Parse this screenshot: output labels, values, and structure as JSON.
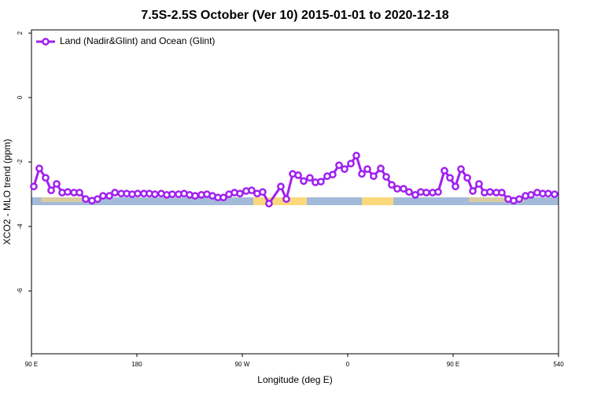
{
  "chart_data": {
    "type": "line",
    "title": "7.5S-2.5S October (Ver 10)   2015-01-01 to 2020-12-18",
    "x_label": "Longitude (deg E)",
    "y_label": "XCO2 - MLO trend (ppm)",
    "x": [
      92.0,
      96.7,
      102.1,
      106.8,
      111.5,
      116.2,
      120.9,
      126.3,
      131.0,
      136.3,
      141.7,
      146.4,
      151.1,
      156.5,
      161.2,
      166.6,
      171.3,
      176.0,
      180.7,
      186.0,
      190.7,
      195.4,
      200.8,
      205.5,
      210.2,
      215.6,
      220.3,
      225.0,
      229.7,
      235.1,
      239.8,
      244.5,
      249.2,
      253.9,
      258.6,
      263.3,
      268.0,
      273.3,
      278.0,
      282.7,
      287.4,
      292.8,
      302.9,
      307.6,
      313.0,
      317.7,
      322.4,
      327.7,
      332.4,
      337.1,
      342.5,
      347.2,
      352.6,
      357.3,
      362.7,
      367.4,
      372.1,
      376.8,
      382.1,
      388.2,
      392.9,
      397.6,
      402.3,
      407.7,
      412.4,
      417.7,
      422.4,
      427.1,
      432.5,
      437.2,
      442.6,
      447.3,
      452.0,
      456.7,
      462.1,
      466.8,
      472.1,
      476.8,
      481.5,
      486.9,
      491.6,
      497.0,
      501.7,
      506.4,
      511.8,
      516.5,
      521.8,
      526.5,
      531.2,
      536.6
    ],
    "series": [
      {
        "name": "Land (Nadir&Glint) and Ocean (Glint)",
        "color": "#a020f0",
        "values": [
          -2.76,
          -2.2,
          -2.49,
          -2.88,
          -2.68,
          -2.95,
          -2.93,
          -2.95,
          -2.95,
          -3.15,
          -3.2,
          -3.15,
          -3.05,
          -3.05,
          -2.95,
          -2.98,
          -2.98,
          -3.0,
          -2.98,
          -2.98,
          -2.98,
          -3.0,
          -2.98,
          -3.02,
          -3.0,
          -3.0,
          -2.98,
          -3.02,
          -3.05,
          -3.02,
          -3.0,
          -3.05,
          -3.1,
          -3.1,
          -3.0,
          -2.95,
          -2.98,
          -2.9,
          -2.88,
          -2.98,
          -2.93,
          -3.29,
          -2.76,
          -3.15,
          -2.37,
          -2.41,
          -2.59,
          -2.49,
          -2.63,
          -2.61,
          -2.44,
          -2.39,
          -2.1,
          -2.22,
          -2.05,
          -1.8,
          -2.37,
          -2.22,
          -2.44,
          -2.2,
          -2.46,
          -2.71,
          -2.83,
          -2.83,
          -2.93,
          -3.02,
          -2.93,
          -2.95,
          -2.95,
          -2.93,
          -2.27,
          -2.49,
          -2.76,
          -2.22,
          -2.49,
          -2.9,
          -2.68,
          -2.95,
          -2.93,
          -2.95,
          -2.95,
          -3.15,
          -3.2,
          -3.15,
          -3.05,
          -3.02,
          -2.95,
          -2.98,
          -2.98,
          -3.0
        ]
      }
    ],
    "xlim": [
      90,
      540
    ],
    "xticks": [
      {
        "value": 90,
        "label": "90 E"
      },
      180,
      {
        "value": 270,
        "label": "90 W"
      },
      {
        "value": 360,
        "label": "0"
      },
      {
        "value": 450,
        "label": "90 E"
      },
      540
    ],
    "ylim": [
      -7.95,
      2.1
    ],
    "yticks": [
      2,
      0,
      -2,
      -4,
      -6
    ],
    "legend_position": "top-left"
  }
}
